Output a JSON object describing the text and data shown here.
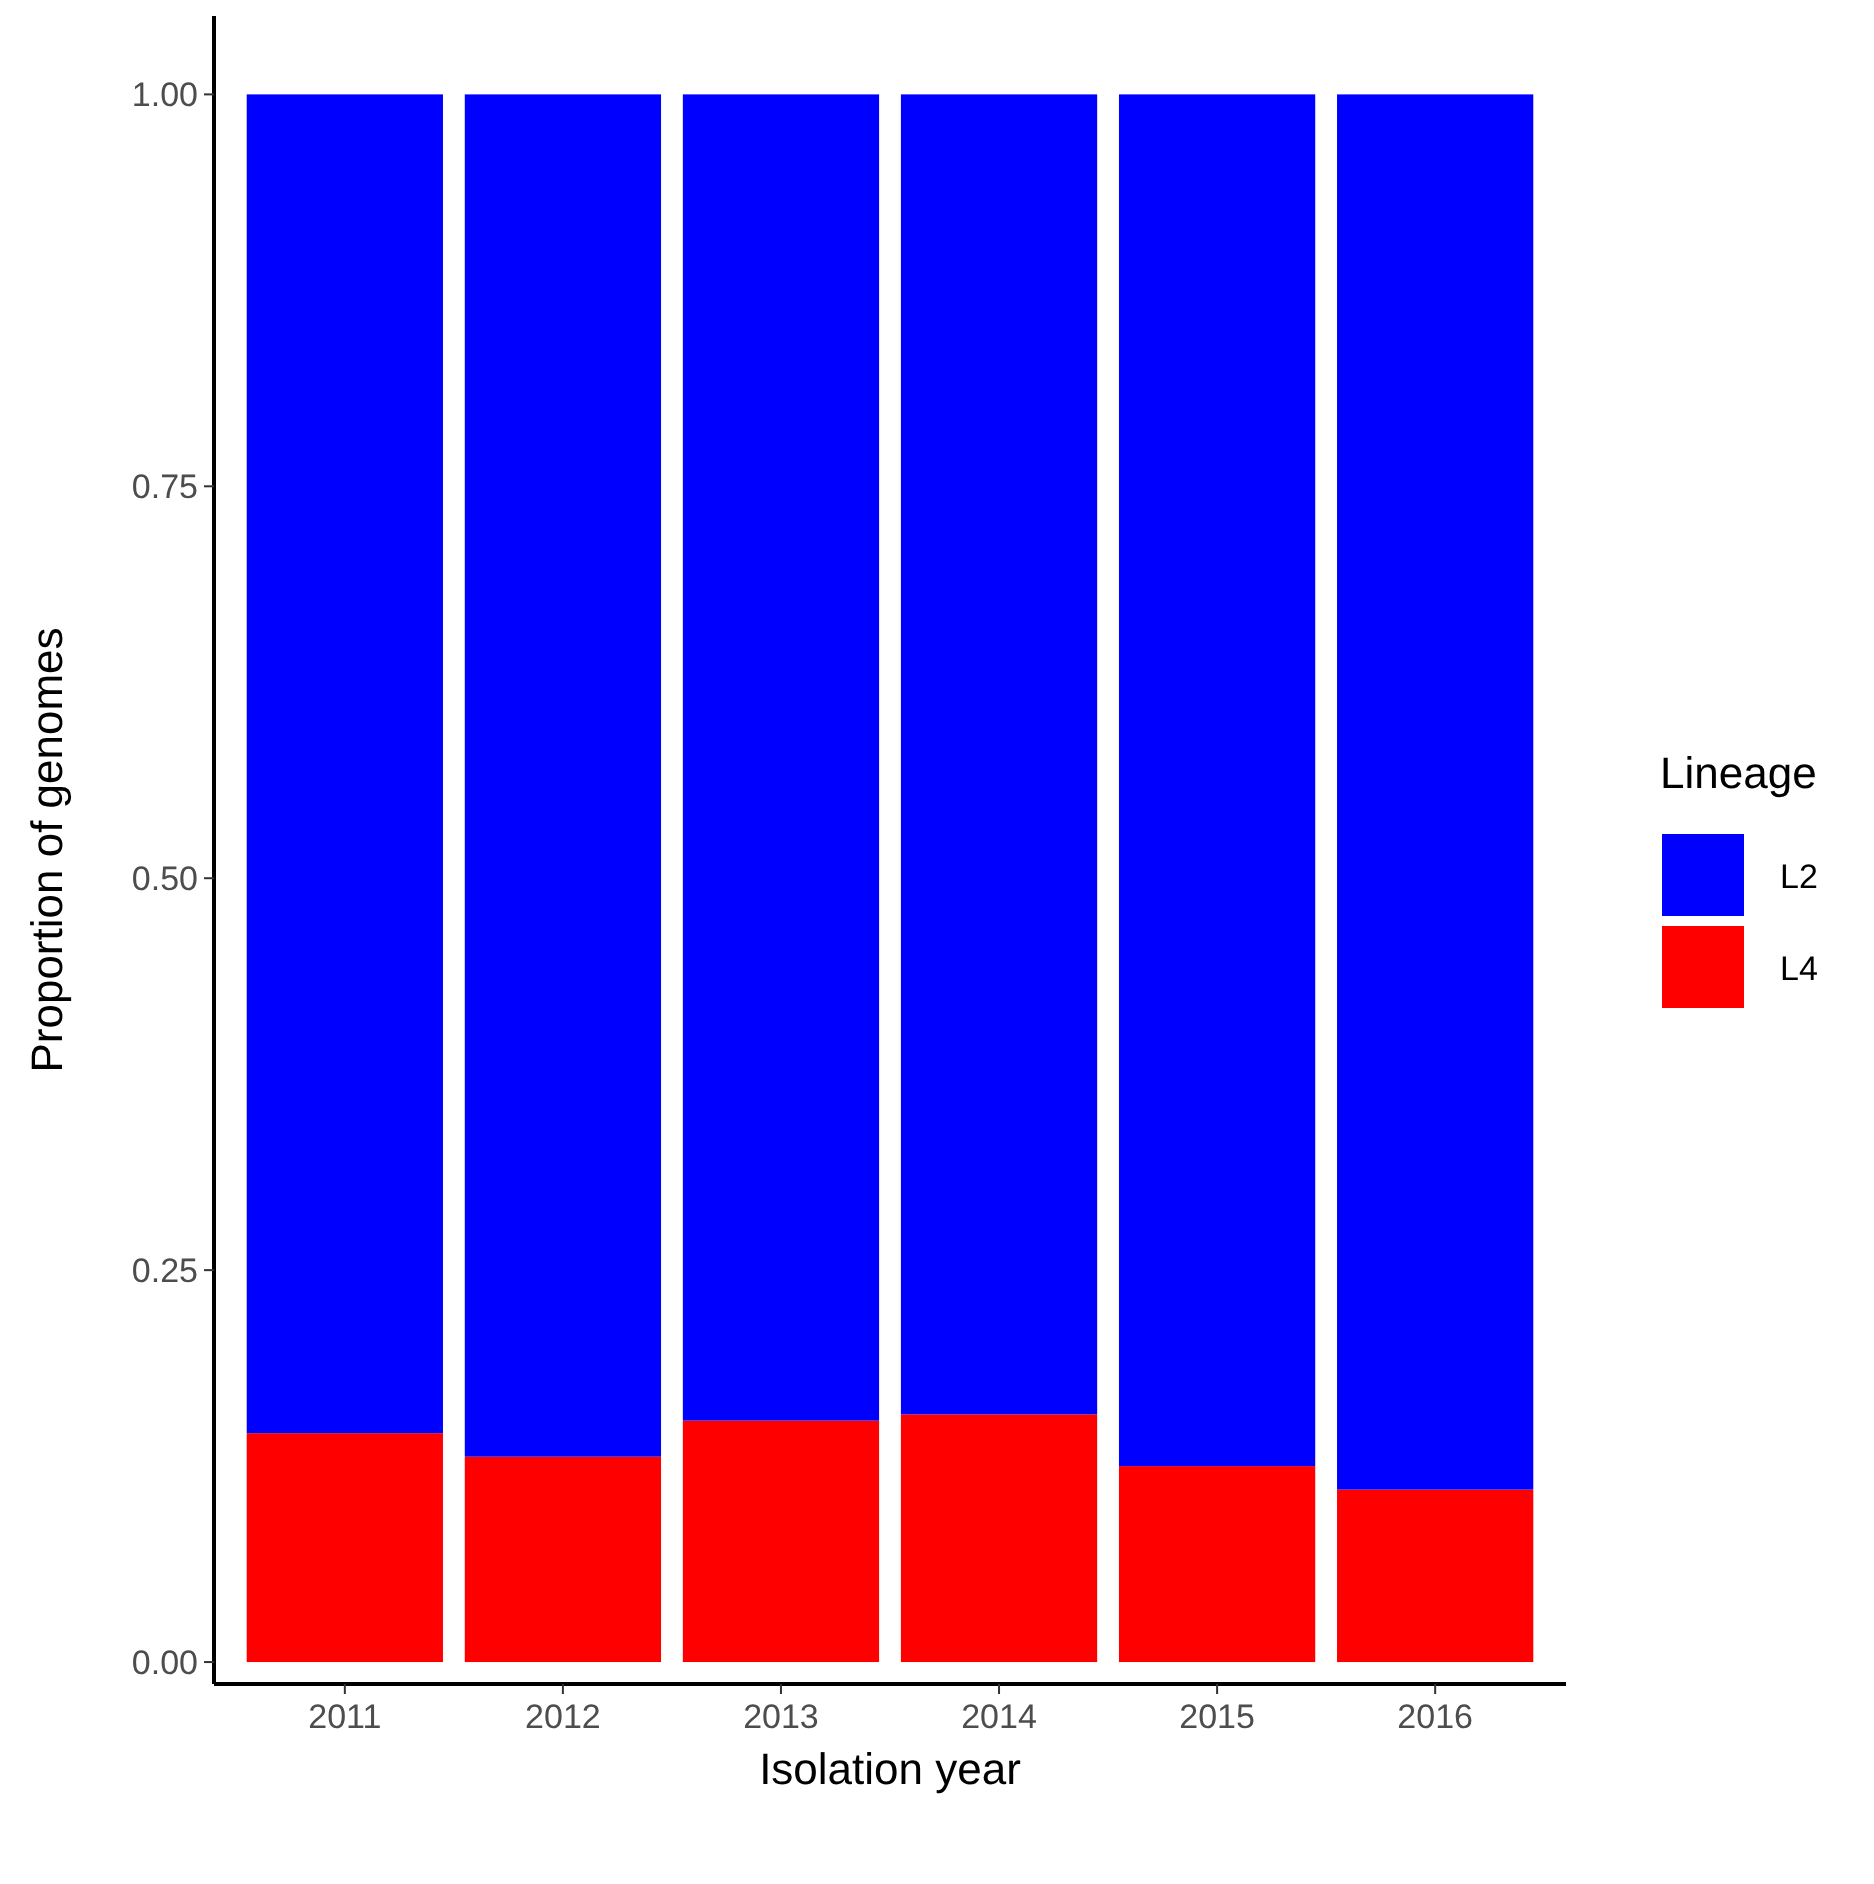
{
  "chart_data": {
    "type": "bar",
    "stacked": true,
    "xlabel": "Isolation year",
    "ylabel": "Proportion of genomes",
    "legend_title": "Lineage",
    "legend": "right",
    "categories": [
      "2011",
      "2012",
      "2013",
      "2014",
      "2015",
      "2016"
    ],
    "series": [
      {
        "name": "L4",
        "color": "#ff0000",
        "values": [
          0.146,
          0.131,
          0.154,
          0.158,
          0.125,
          0.11
        ]
      },
      {
        "name": "L2",
        "color": "#0000ff",
        "values": [
          0.854,
          0.869,
          0.846,
          0.842,
          0.875,
          0.89
        ]
      }
    ],
    "ylim": [
      -0.014,
      1.05
    ],
    "yticks": [
      {
        "value": 0,
        "label": "0.00"
      },
      {
        "value": 0.25,
        "label": "0.25"
      },
      {
        "value": 0.5,
        "label": "0.50"
      },
      {
        "value": 0.75,
        "label": "0.75"
      },
      {
        "value": 1,
        "label": "1.00"
      }
    ],
    "grid": false
  }
}
